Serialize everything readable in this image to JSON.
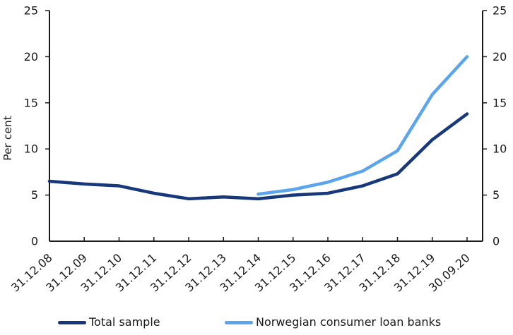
{
  "chart_data": {
    "type": "line",
    "title": "",
    "ylabel": "Per cent",
    "xlabel": "",
    "categories": [
      "31.12.08",
      "31.12.09",
      "31.12.10",
      "31.12.11",
      "31.12.12",
      "31.12.13",
      "31.12.14",
      "31.12.15",
      "31.12.16",
      "31.12.17",
      "31.12.18",
      "31.12.19",
      "30.09.20"
    ],
    "series": [
      {
        "name": "Total sample",
        "color": "#17387b",
        "values": [
          6.5,
          6.2,
          6.0,
          5.2,
          4.6,
          4.8,
          4.6,
          5.0,
          5.2,
          6.0,
          7.3,
          11.0,
          13.8
        ]
      },
      {
        "name": "Norwegian consumer loan banks",
        "color": "#5aa5ee",
        "values": [
          null,
          null,
          null,
          null,
          null,
          null,
          5.1,
          5.6,
          6.4,
          7.6,
          9.8,
          15.9,
          20.0
        ]
      }
    ],
    "ylim": [
      0,
      25
    ],
    "yticks": [
      0,
      5,
      10,
      15,
      20,
      25
    ],
    "y_axis_sides": "both",
    "grid": false,
    "legend_position": "bottom",
    "x_tick_label_rotation_deg": -42,
    "axis_color": "#1a1a1a"
  }
}
